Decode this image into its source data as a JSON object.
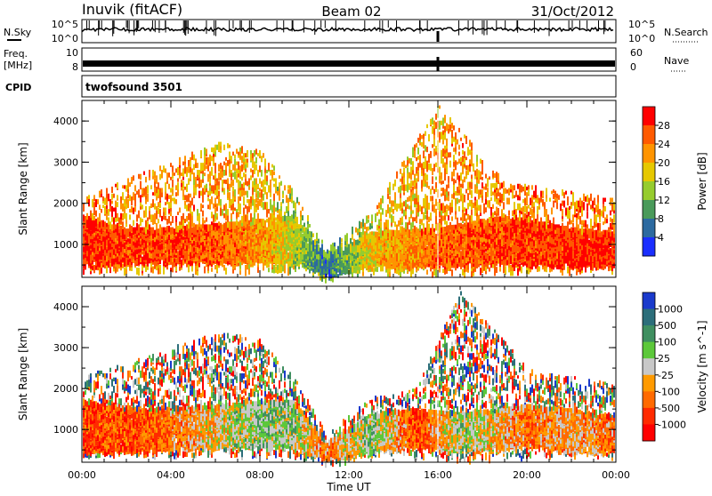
{
  "header": {
    "station": "Inuvik (fitACF)",
    "beam": "Beam 02",
    "date": "31/Oct/2012"
  },
  "strip_labels": {
    "nsky": "N.Sky",
    "nsearch": "N.Search",
    "freq_top": "Freq.",
    "freq_unit": "[MHz]",
    "nave": "Nave",
    "cpid": "CPID",
    "cpid_value": "twofsound 3501",
    "noise_ticks": [
      "10^5",
      "10^0"
    ],
    "freq_ticks": [
      "10",
      "8"
    ],
    "nave_ticks": [
      "60",
      "0"
    ]
  },
  "chart_data": [
    {
      "type": "heatmap",
      "name": "power",
      "xlabel": "",
      "ylabel": "Slant Range [km]",
      "x_ticks": [
        "00:00",
        "04:00",
        "08:00",
        "12:00",
        "16:00",
        "20:00",
        "00:00"
      ],
      "xlim_hours": [
        0,
        24
      ],
      "ylim": [
        200,
        4500
      ],
      "y_ticks": [
        1000,
        2000,
        3000,
        4000
      ],
      "colorbar": {
        "label": "Power [dB]",
        "ticks": [
          "28",
          "24",
          "20",
          "16",
          "12",
          "8",
          "4"
        ],
        "colors": [
          "#ff0000",
          "#ff5a00",
          "#ff9400",
          "#e6c800",
          "#96cc2e",
          "#4a9a5a",
          "#2c6aa0",
          "#1a2eff"
        ]
      },
      "scatter_profile": [
        {
          "t": 0,
          "core": [
            500,
            1700
          ],
          "extent": [
            400,
            2100
          ],
          "level": 0.9
        },
        {
          "t": 2,
          "core": [
            600,
            1400
          ],
          "extent": [
            400,
            2600
          ],
          "level": 0.85
        },
        {
          "t": 4,
          "core": [
            600,
            1400
          ],
          "extent": [
            400,
            3000
          ],
          "level": 0.85
        },
        {
          "t": 6,
          "core": [
            600,
            1500
          ],
          "extent": [
            400,
            3500
          ],
          "level": 0.8
        },
        {
          "t": 8,
          "core": [
            600,
            1600
          ],
          "extent": [
            400,
            3300
          ],
          "level": 0.7
        },
        {
          "t": 9.5,
          "core": [
            600,
            1700
          ],
          "extent": [
            400,
            2300
          ],
          "level": 0.5
        },
        {
          "t": 11,
          "core": [
            300,
            700
          ],
          "extent": [
            200,
            900
          ],
          "level": 0.2
        },
        {
          "t": 13,
          "core": [
            500,
            1300
          ],
          "extent": [
            400,
            1800
          ],
          "level": 0.6
        },
        {
          "t": 16,
          "core": [
            500,
            1400
          ],
          "extent": [
            300,
            4400
          ],
          "level": 0.8
        },
        {
          "t": 19,
          "core": [
            600,
            1700
          ],
          "extent": [
            400,
            2500
          ],
          "level": 0.85
        },
        {
          "t": 22,
          "core": [
            500,
            1400
          ],
          "extent": [
            400,
            2300
          ],
          "level": 0.9
        },
        {
          "t": 24,
          "core": [
            500,
            1300
          ],
          "extent": [
            400,
            2100
          ],
          "level": 0.9
        }
      ]
    },
    {
      "type": "heatmap",
      "name": "velocity",
      "xlabel": "Time UT",
      "ylabel": "Slant Range [km]",
      "x_ticks": [
        "00:00",
        "04:00",
        "08:00",
        "12:00",
        "16:00",
        "20:00",
        "00:00"
      ],
      "xlim_hours": [
        0,
        24
      ],
      "ylim": [
        200,
        4500
      ],
      "y_ticks": [
        1000,
        2000,
        3000,
        4000
      ],
      "colorbar": {
        "label": "Velocity [m s^-1]",
        "ticks": [
          "1000",
          "500",
          "100",
          "25",
          "-25",
          "-100",
          "-500",
          "-1000"
        ],
        "colors": [
          "#1a3acc",
          "#2c6e7a",
          "#3f8f60",
          "#5cc83a",
          "#c8c8c8",
          "#ff9a00",
          "#ff6a00",
          "#ff2a00",
          "#ff0000"
        ]
      },
      "scatter_profile": [
        {
          "t": 0,
          "core": [
            500,
            1700
          ],
          "extent": [
            400,
            2300
          ],
          "level": 0.2
        },
        {
          "t": 3,
          "core": [
            500,
            1500
          ],
          "extent": [
            400,
            2800
          ],
          "level": 0.25
        },
        {
          "t": 6,
          "core": [
            600,
            1600
          ],
          "extent": [
            400,
            3400
          ],
          "level": 0.45
        },
        {
          "t": 8,
          "core": [
            600,
            1700
          ],
          "extent": [
            400,
            3200
          ],
          "level": 0.6
        },
        {
          "t": 9.5,
          "core": [
            600,
            1700
          ],
          "extent": [
            400,
            2300
          ],
          "level": 0.55
        },
        {
          "t": 11,
          "core": [
            300,
            700
          ],
          "extent": [
            200,
            900
          ],
          "level": 0.3
        },
        {
          "t": 13,
          "core": [
            500,
            1400
          ],
          "extent": [
            400,
            1800
          ],
          "level": 0.6
        },
        {
          "t": 15,
          "core": [
            600,
            1500
          ],
          "extent": [
            400,
            2000
          ],
          "level": 0.2
        },
        {
          "t": 17,
          "core": [
            500,
            1400
          ],
          "extent": [
            300,
            4400
          ],
          "level": 0.55
        },
        {
          "t": 20,
          "core": [
            600,
            1600
          ],
          "extent": [
            400,
            2500
          ],
          "level": 0.3
        },
        {
          "t": 22,
          "core": [
            500,
            1500
          ],
          "extent": [
            400,
            2300
          ],
          "level": 0.4
        },
        {
          "t": 24,
          "core": [
            500,
            1300
          ],
          "extent": [
            400,
            2100
          ],
          "level": 0.3
        }
      ]
    }
  ]
}
